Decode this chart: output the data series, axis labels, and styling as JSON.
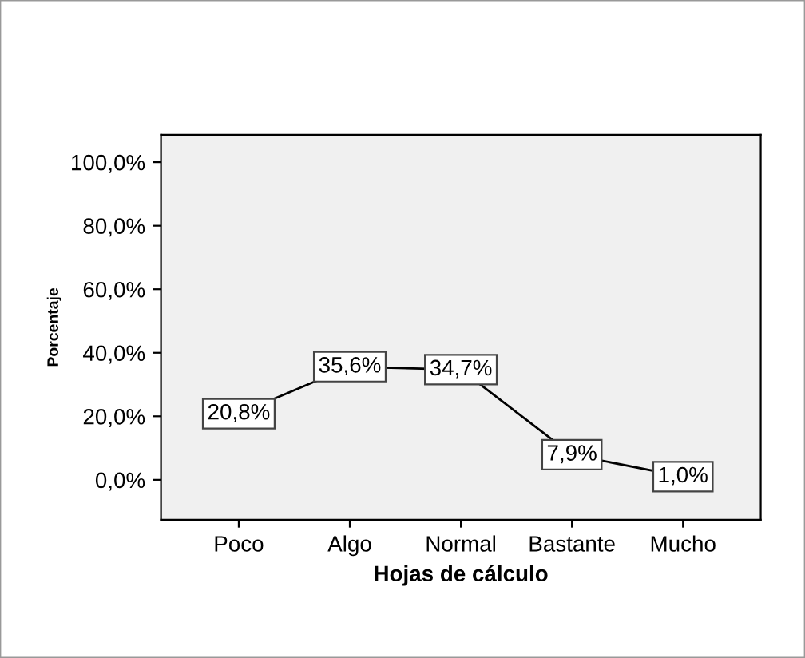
{
  "chart_data": {
    "type": "line",
    "xlabel": "Hojas de cálculo",
    "ylabel": "Porcentaje",
    "categories": [
      "Poco",
      "Algo",
      "Normal",
      "Bastante",
      "Mucho"
    ],
    "series": [
      {
        "color": "#000000",
        "values": [
          20.8,
          35.6,
          34.7,
          7.9,
          1.0
        ],
        "value_labels": [
          "20,8%",
          "35,6%",
          "34,7%",
          "7,9%",
          "1,0%"
        ]
      }
    ],
    "ylim": [
      -12.6,
      108.6
    ],
    "yticks": [
      {
        "value": 0,
        "label": "0,0%"
      },
      {
        "value": 20,
        "label": "20,0%"
      },
      {
        "value": 40,
        "label": "40,0%"
      },
      {
        "value": 60,
        "label": "60,0%"
      },
      {
        "value": 80,
        "label": "80,0%"
      },
      {
        "value": 100,
        "label": "100,0%"
      }
    ],
    "grid": false,
    "line_style": "solid"
  }
}
